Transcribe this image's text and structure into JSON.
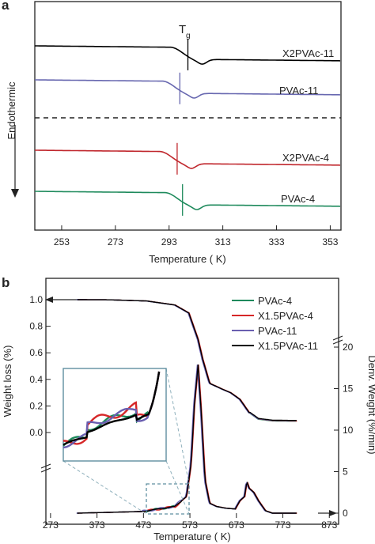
{
  "chart_data": [
    {
      "panel": "a",
      "type": "line",
      "xlabel": "Temperature ( K)",
      "ylabel": "Endothermic",
      "xlim": [
        243,
        357
      ],
      "xticks": [
        253,
        273,
        293,
        313,
        333,
        353
      ],
      "tg_label": "T",
      "tg_sub": "g",
      "series": [
        {
          "name": "X2PVAc-11",
          "color": "#000000",
          "tg": 300,
          "offset": 0
        },
        {
          "name": "PVAc-11",
          "color": "#6868b0",
          "tg": 297,
          "offset": 1
        },
        {
          "name": "X2PVAc-4",
          "color": "#c0272d",
          "tg": 296,
          "offset": 2
        },
        {
          "name": "PVAc-4",
          "color": "#1e8a5c",
          "tg": 298,
          "offset": 3
        }
      ]
    },
    {
      "panel": "b",
      "type": "line",
      "xlabel": "Temperature ( K)",
      "ylabel": "Weight loss (%)",
      "ylabel2": "Deriv. Weight (%/min)",
      "xlim": [
        263,
        893
      ],
      "xticks": [
        273,
        373,
        473,
        573,
        673,
        773,
        873
      ],
      "yticks": [
        "0.0",
        "0.2",
        "0.4",
        "0.6",
        "0.8",
        "1.0"
      ],
      "yticks2": [
        "0",
        "5",
        "10",
        "15",
        "20"
      ],
      "series": [
        {
          "name": "PVAc-4",
          "color": "#1e8a5c"
        },
        {
          "name": "X1.5PVAc-4",
          "color": "#d62728"
        },
        {
          "name": "PVAc-11",
          "color": "#6a5fb0"
        },
        {
          "name": "X1.5PVAc-11",
          "color": "#000000"
        }
      ],
      "weight_loss": {
        "x": [
          330,
          400,
          480,
          540,
          570,
          590,
          600,
          615,
          640,
          660,
          680,
          700,
          720,
          750,
          790,
          803
        ],
        "y": [
          1.0,
          0.999,
          0.99,
          0.96,
          0.9,
          0.7,
          0.55,
          0.37,
          0.33,
          0.3,
          0.25,
          0.15,
          0.1,
          0.087,
          0.085,
          0.085
        ]
      },
      "derivative": {
        "x": [
          330,
          470,
          540,
          565,
          575,
          582,
          590,
          597,
          605,
          615,
          630,
          650,
          670,
          680,
          690,
          695,
          700,
          710,
          720,
          735,
          750,
          803
        ],
        "y": [
          0,
          0.2,
          0.8,
          2.0,
          6.0,
          13.0,
          17.9,
          12.0,
          4.0,
          1.2,
          0.8,
          0.6,
          0.5,
          1.5,
          2.0,
          3.8,
          3.0,
          2.5,
          1.5,
          0.3,
          0,
          0
        ]
      }
    }
  ]
}
